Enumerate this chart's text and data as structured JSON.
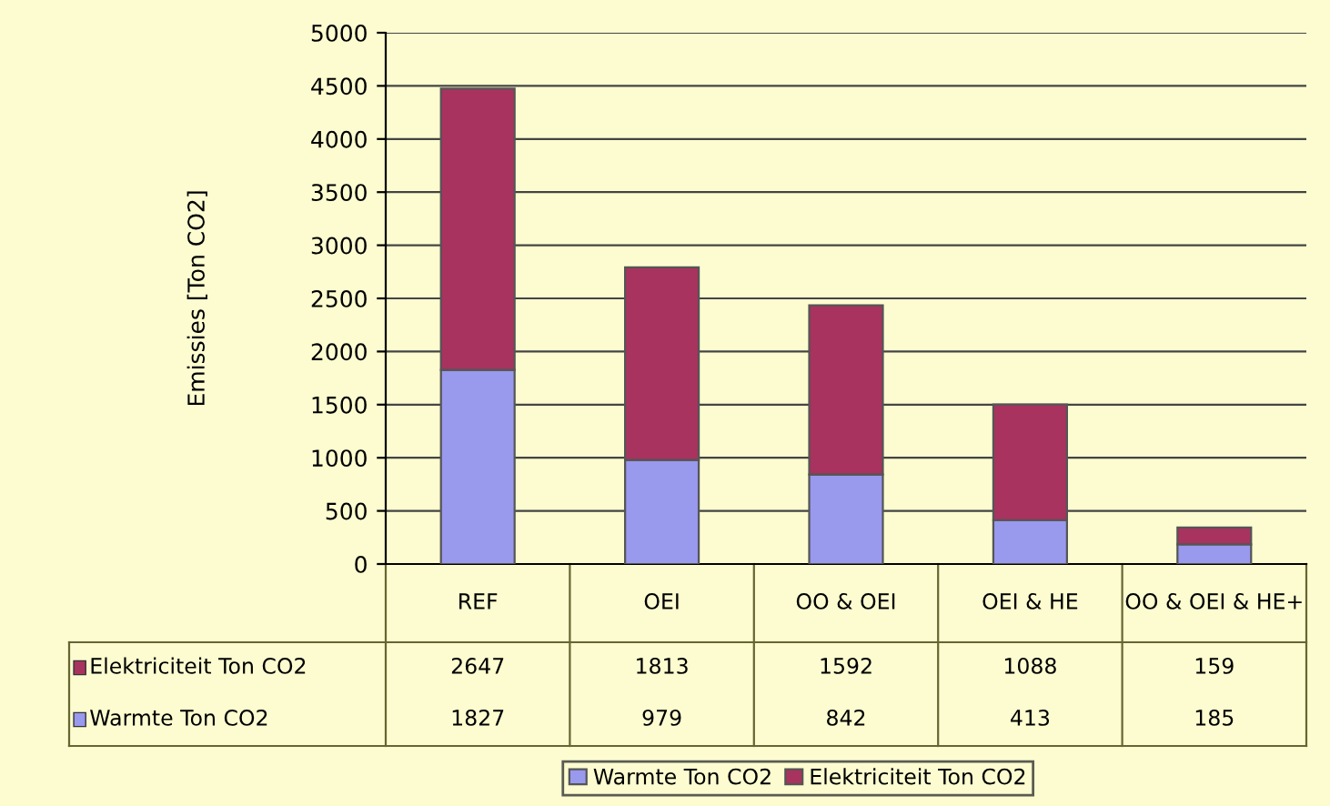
{
  "chart_data": {
    "type": "bar",
    "stacked": true,
    "ylabel": "Emissies [Ton CO2]",
    "categories": [
      "REF",
      "OEI",
      "OO & OEI",
      "OEI & HE",
      "OO & OEI & HE+"
    ],
    "series": [
      {
        "name": "Warmte Ton CO2",
        "color": "#9999ee",
        "values": [
          1827,
          979,
          842,
          413,
          185
        ]
      },
      {
        "name": "Elektriciteit Ton CO2",
        "color": "#a8335e",
        "values": [
          2647,
          1813,
          1592,
          1088,
          159
        ]
      }
    ],
    "ylim": [
      0,
      5000
    ],
    "yticks": [
      0,
      500,
      1000,
      1500,
      2000,
      2500,
      3000,
      3500,
      4000,
      4500,
      5000
    ],
    "grid": "y",
    "legend": "bottom",
    "data_labels": true
  }
}
